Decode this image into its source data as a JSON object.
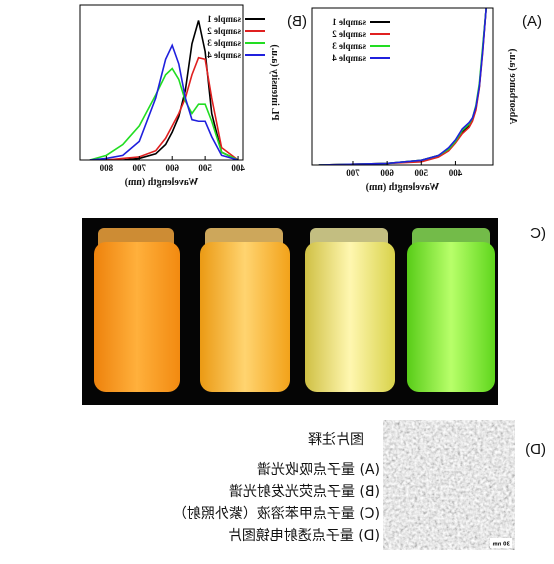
{
  "panel_labels": [
    "(A)",
    "(B)",
    "(C",
    "(D)"
  ],
  "chart_data": [
    {
      "type": "line",
      "xlabel": "Wavelength (nm)",
      "ylabel": "Absorbance (a.u.)",
      "x": [
        310,
        320,
        330,
        340,
        350,
        360,
        380,
        400,
        420,
        450,
        500,
        600,
        800
      ],
      "xlim": [
        290,
        820
      ],
      "xticks": [
        400,
        500,
        600,
        700
      ],
      "ylim": [
        0,
        1
      ],
      "legend": "upper right",
      "series": [
        {
          "name": "sample 1",
          "color": "#000000",
          "values": [
            1.0,
            0.74,
            0.5,
            0.36,
            0.29,
            0.25,
            0.21,
            0.15,
            0.1,
            0.06,
            0.03,
            0.01,
            0.0
          ]
        },
        {
          "name": "sample 2",
          "color": "#e02020",
          "values": [
            1.0,
            0.72,
            0.49,
            0.35,
            0.28,
            0.24,
            0.2,
            0.14,
            0.09,
            0.05,
            0.02,
            0.01,
            0.0
          ]
        },
        {
          "name": "sample 3",
          "color": "#22dd22",
          "values": [
            1.0,
            0.76,
            0.52,
            0.38,
            0.3,
            0.26,
            0.22,
            0.15,
            0.1,
            0.06,
            0.03,
            0.01,
            0.0
          ]
        },
        {
          "name": "sample 4",
          "color": "#2020dd",
          "values": [
            1.0,
            0.73,
            0.5,
            0.37,
            0.3,
            0.27,
            0.23,
            0.16,
            0.11,
            0.06,
            0.03,
            0.01,
            0.0
          ]
        }
      ]
    },
    {
      "type": "line",
      "xlabel": "Wavelength (nm)",
      "ylabel": "PL intensity (a.u.)",
      "x": [
        400,
        450,
        480,
        500,
        520,
        540,
        560,
        580,
        600,
        620,
        650,
        700,
        750,
        800,
        850
      ],
      "xlim": [
        385,
        880
      ],
      "xticks": [
        400,
        500,
        600,
        700,
        800
      ],
      "ylim": [
        0,
        1
      ],
      "legend": "upper left",
      "series": [
        {
          "name": "sample 1",
          "color": "#000000",
          "values": [
            0.0,
            0.05,
            0.3,
            0.7,
            0.9,
            0.75,
            0.45,
            0.28,
            0.18,
            0.1,
            0.04,
            0.01,
            0.0,
            0.0,
            0.0
          ]
        },
        {
          "name": "sample 2",
          "color": "#e02020",
          "values": [
            0.0,
            0.08,
            0.4,
            0.65,
            0.66,
            0.55,
            0.4,
            0.3,
            0.22,
            0.14,
            0.06,
            0.02,
            0.01,
            0.0,
            0.0
          ]
        },
        {
          "name": "sample 3",
          "color": "#22dd22",
          "values": [
            0.0,
            0.05,
            0.25,
            0.36,
            0.36,
            0.3,
            0.38,
            0.52,
            0.59,
            0.55,
            0.42,
            0.22,
            0.1,
            0.03,
            0.0
          ]
        },
        {
          "name": "sample 4",
          "color": "#2020dd",
          "values": [
            0.0,
            0.03,
            0.15,
            0.25,
            0.25,
            0.26,
            0.4,
            0.62,
            0.74,
            0.65,
            0.4,
            0.12,
            0.03,
            0.01,
            0.0
          ]
        }
      ]
    }
  ],
  "scale_bar": "30 nm",
  "caption": {
    "title": "图片注释",
    "lines": [
      "(A) 量子点吸收光谱",
      "(B) 量子点荧光发射光谱",
      "(C) 量子点甲苯溶液（紫外照射）",
      "(D) 量子点透射电镜图片"
    ]
  }
}
